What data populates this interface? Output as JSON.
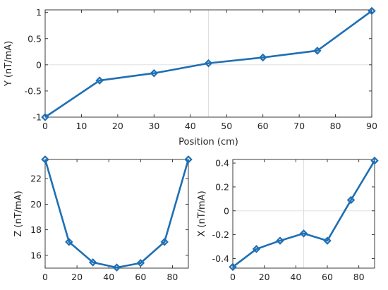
{
  "chart_data": [
    {
      "type": "line",
      "xlabel": "Position (cm)",
      "ylabel": "Y (nT/mA)",
      "xlim": [
        0,
        90
      ],
      "ylim": [
        -1,
        1.05
      ],
      "xticks": [
        "0",
        "10",
        "20",
        "30",
        "40",
        "50",
        "60",
        "70",
        "80",
        "90"
      ],
      "yticks": [
        "-1",
        "-0.5",
        "0",
        "0.5",
        "1"
      ],
      "grid": "center crosshair",
      "color": "#1f6fb4",
      "series": [
        {
          "x": [
            0,
            15,
            30,
            45,
            60,
            75,
            90
          ],
          "values": [
            -1.0,
            -0.3,
            -0.16,
            0.03,
            0.14,
            0.27,
            1.03
          ]
        }
      ]
    },
    {
      "type": "line",
      "xlabel": "",
      "ylabel": "Z (nT/mA)",
      "xlim": [
        0,
        90
      ],
      "ylim": [
        15,
        23.5
      ],
      "xticks": [
        "0",
        "20",
        "40",
        "60",
        "80"
      ],
      "yticks": [
        "16",
        "18",
        "20",
        "22"
      ],
      "grid": "none",
      "color": "#1f6fb4",
      "series": [
        {
          "x": [
            0,
            15,
            30,
            45,
            60,
            75,
            90
          ],
          "values": [
            23.5,
            17.05,
            15.45,
            15.05,
            15.4,
            17.05,
            23.5
          ]
        }
      ]
    },
    {
      "type": "line",
      "xlabel": "",
      "ylabel": "X (nT/mA)",
      "xlim": [
        0,
        90
      ],
      "ylim": [
        -0.48,
        0.43
      ],
      "xticks": [
        "0",
        "20",
        "40",
        "60",
        "80"
      ],
      "yticks": [
        "-0.4",
        "-0.2",
        "0",
        "0.2",
        "0.4"
      ],
      "grid": "center crosshair",
      "color": "#1f6fb4",
      "series": [
        {
          "x": [
            0,
            15,
            30,
            45,
            60,
            75,
            90
          ],
          "values": [
            -0.47,
            -0.32,
            -0.25,
            -0.19,
            -0.25,
            0.09,
            0.42
          ]
        }
      ]
    }
  ]
}
